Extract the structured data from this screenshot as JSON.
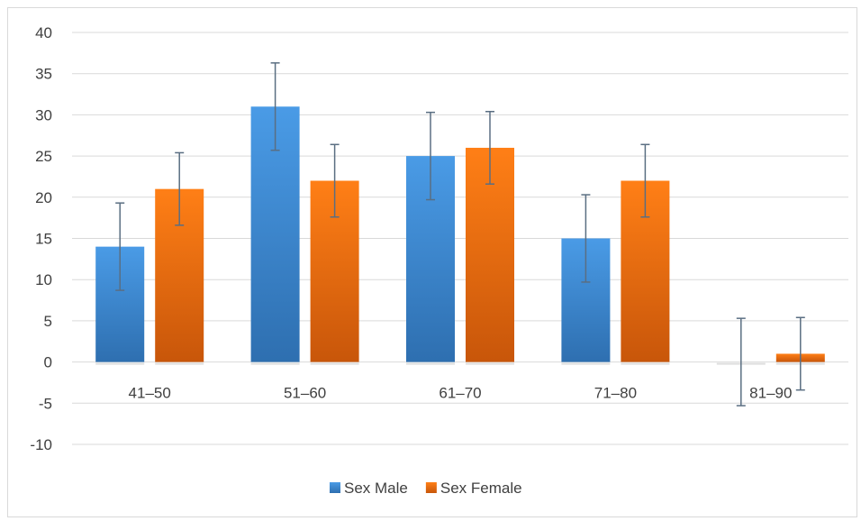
{
  "chart_data": {
    "type": "bar",
    "categories": [
      "41–50",
      "51–60",
      "61–70",
      "71–80",
      "81–90"
    ],
    "series": [
      {
        "name": "Sex Male",
        "color": "#3d8bd4",
        "values": [
          14,
          31,
          25,
          15,
          0
        ],
        "error": [
          5.3,
          5.3,
          5.3,
          5.3,
          5.3
        ]
      },
      {
        "name": "Sex Female",
        "color": "#ef6c0f",
        "values": [
          21,
          22,
          26,
          22,
          1
        ],
        "error": [
          4.4,
          4.4,
          4.4,
          4.4,
          4.4
        ]
      }
    ],
    "ylim": [
      -10,
      40
    ],
    "yticks": [
      -10,
      -5,
      0,
      5,
      10,
      15,
      20,
      25,
      30,
      35,
      40
    ],
    "grid": true,
    "legend": "bottom",
    "title": "",
    "xlabel": "",
    "ylabel": ""
  }
}
